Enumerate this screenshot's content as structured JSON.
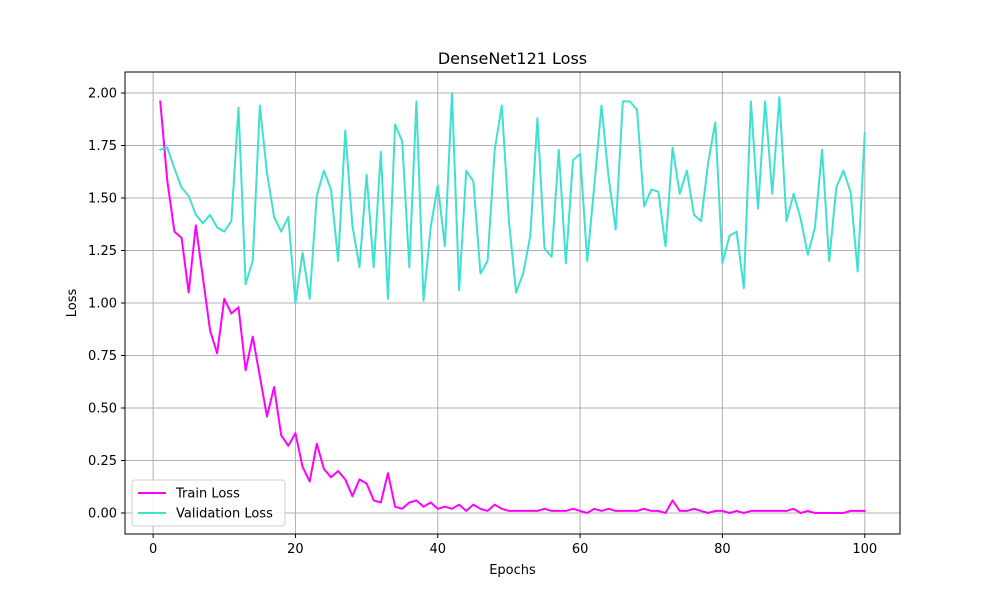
{
  "chart_data": {
    "type": "line",
    "title": "DenseNet121 Loss",
    "xlabel": "Epochs",
    "ylabel": "Loss",
    "xlim": [
      -3.95,
      104.95
    ],
    "ylim": [
      -0.1,
      2.1
    ],
    "xticks": [
      0,
      20,
      40,
      60,
      80,
      100
    ],
    "yticks": [
      0.0,
      0.25,
      0.5,
      0.75,
      1.0,
      1.25,
      1.5,
      1.75,
      2.0
    ],
    "grid": true,
    "legend": "lower-left",
    "x": [
      1,
      2,
      3,
      4,
      5,
      6,
      7,
      8,
      9,
      10,
      11,
      12,
      13,
      14,
      15,
      16,
      17,
      18,
      19,
      20,
      21,
      22,
      23,
      24,
      25,
      26,
      27,
      28,
      29,
      30,
      31,
      32,
      33,
      34,
      35,
      36,
      37,
      38,
      39,
      40,
      41,
      42,
      43,
      44,
      45,
      46,
      47,
      48,
      49,
      50,
      51,
      52,
      53,
      54,
      55,
      56,
      57,
      58,
      59,
      60,
      61,
      62,
      63,
      64,
      65,
      66,
      67,
      68,
      69,
      70,
      71,
      72,
      73,
      74,
      75,
      76,
      77,
      78,
      79,
      80,
      81,
      82,
      83,
      84,
      85,
      86,
      87,
      88,
      89,
      90,
      91,
      92,
      93,
      94,
      95,
      96,
      97,
      98,
      99,
      100
    ],
    "series": [
      {
        "name": "Train Loss",
        "color": "#ff00ff",
        "values": [
          1.96,
          1.58,
          1.34,
          1.31,
          1.05,
          1.37,
          1.12,
          0.87,
          0.76,
          1.02,
          0.95,
          0.98,
          0.68,
          0.84,
          0.65,
          0.46,
          0.6,
          0.37,
          0.32,
          0.38,
          0.22,
          0.15,
          0.33,
          0.21,
          0.17,
          0.2,
          0.16,
          0.08,
          0.16,
          0.14,
          0.06,
          0.05,
          0.19,
          0.03,
          0.02,
          0.05,
          0.06,
          0.03,
          0.05,
          0.02,
          0.03,
          0.02,
          0.04,
          0.01,
          0.04,
          0.02,
          0.01,
          0.04,
          0.02,
          0.01,
          0.01,
          0.01,
          0.01,
          0.01,
          0.02,
          0.01,
          0.01,
          0.01,
          0.02,
          0.01,
          0.0,
          0.02,
          0.01,
          0.02,
          0.01,
          0.01,
          0.01,
          0.01,
          0.02,
          0.01,
          0.01,
          0.0,
          0.06,
          0.01,
          0.01,
          0.02,
          0.01,
          0.0,
          0.01,
          0.01,
          0.0,
          0.01,
          0.0,
          0.01,
          0.01,
          0.01,
          0.01,
          0.01,
          0.01,
          0.02,
          0.0,
          0.01,
          0.0,
          0.0,
          0.0,
          0.0,
          0.0,
          0.01,
          0.01,
          0.01
        ]
      },
      {
        "name": "Validation Loss",
        "color": "#40e0d0",
        "values": [
          1.73,
          1.74,
          1.64,
          1.55,
          1.51,
          1.42,
          1.38,
          1.42,
          1.36,
          1.34,
          1.39,
          1.93,
          1.09,
          1.2,
          1.94,
          1.62,
          1.41,
          1.34,
          1.41,
          1.0,
          1.24,
          1.02,
          1.51,
          1.63,
          1.54,
          1.2,
          1.82,
          1.37,
          1.17,
          1.61,
          1.17,
          1.72,
          1.02,
          1.85,
          1.77,
          1.17,
          1.96,
          1.01,
          1.36,
          1.56,
          1.27,
          2.0,
          1.06,
          1.63,
          1.58,
          1.14,
          1.2,
          1.73,
          1.94,
          1.39,
          1.05,
          1.14,
          1.32,
          1.88,
          1.26,
          1.22,
          1.73,
          1.19,
          1.68,
          1.71,
          1.2,
          1.56,
          1.94,
          1.6,
          1.35,
          1.96,
          1.96,
          1.92,
          1.46,
          1.54,
          1.53,
          1.27,
          1.74,
          1.52,
          1.63,
          1.42,
          1.39,
          1.67,
          1.86,
          1.19,
          1.32,
          1.34,
          1.07,
          1.96,
          1.45,
          1.96,
          1.52,
          1.98,
          1.39,
          1.52,
          1.4,
          1.23,
          1.36,
          1.73,
          1.2,
          1.55,
          1.63,
          1.53,
          1.15,
          1.81
        ]
      }
    ]
  }
}
